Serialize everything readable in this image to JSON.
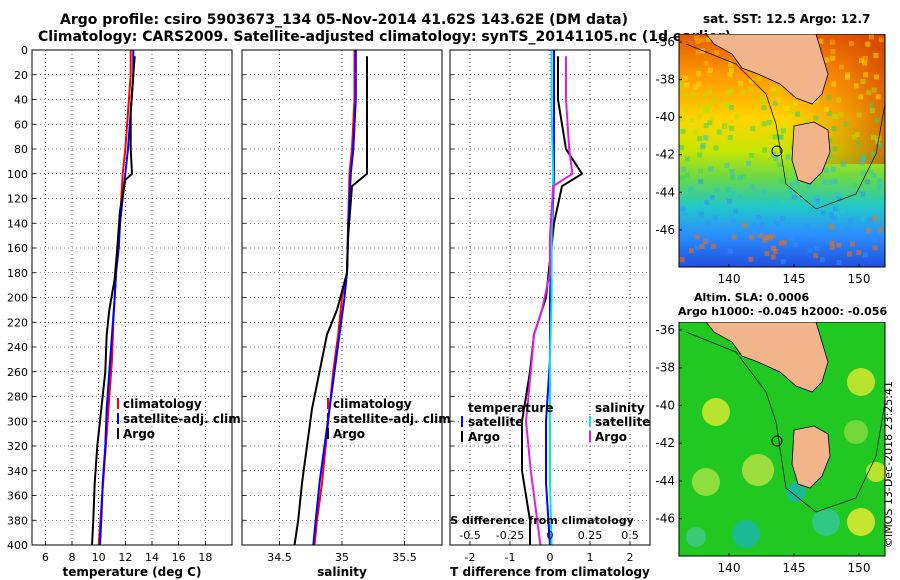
{
  "title": {
    "line1": "Argo profile: csiro 5903673_134 05-Nov-2014 41.62S 143.62E (DM data)",
    "line2": "Climatology: CARS2009. Satellite-adjusted climatology: synTS_20141105.nc (1d earlier)"
  },
  "chart_data": [
    {
      "type": "line",
      "name": "temperature-profile",
      "xlabel": "temperature (deg C)",
      "ylabel": "",
      "xlim": [
        5,
        20
      ],
      "ylim": [
        400,
        0
      ],
      "xticks": [
        6,
        8,
        10,
        12,
        14,
        16,
        18
      ],
      "yticks": [
        0,
        20,
        40,
        60,
        80,
        100,
        120,
        140,
        160,
        180,
        200,
        220,
        240,
        260,
        280,
        300,
        320,
        340,
        360,
        380,
        400
      ],
      "grid": true,
      "legend": [
        "climatology",
        "satellite-adj. clim.",
        "Argo"
      ],
      "series": [
        {
          "name": "climatology",
          "color": "#ff0000",
          "points": [
            [
              12.4,
              0
            ],
            [
              12.4,
              20
            ],
            [
              12.2,
              50
            ],
            [
              12.0,
              80
            ],
            [
              11.8,
              100
            ],
            [
              11.7,
              120
            ],
            [
              11.6,
              140
            ],
            [
              11.5,
              160
            ],
            [
              11.3,
              180
            ],
            [
              11.2,
              200
            ],
            [
              11.1,
              220
            ],
            [
              11.0,
              250
            ],
            [
              10.8,
              280
            ],
            [
              10.6,
              310
            ],
            [
              10.4,
              340
            ],
            [
              10.2,
              370
            ],
            [
              10.0,
              400
            ]
          ]
        },
        {
          "name": "satellite-adj. clim.",
          "color": "#0000ff",
          "points": [
            [
              12.6,
              0
            ],
            [
              12.6,
              20
            ],
            [
              12.4,
              50
            ],
            [
              12.2,
              80
            ],
            [
              12.0,
              100
            ],
            [
              11.8,
              120
            ],
            [
              11.6,
              140
            ],
            [
              11.5,
              160
            ],
            [
              11.3,
              180
            ],
            [
              11.2,
              200
            ],
            [
              11.0,
              230
            ],
            [
              10.8,
              260
            ],
            [
              10.6,
              290
            ],
            [
              10.5,
              320
            ],
            [
              10.3,
              350
            ],
            [
              10.2,
              380
            ],
            [
              10.1,
              400
            ]
          ]
        },
        {
          "name": "Argo",
          "color": "#000000",
          "points": [
            [
              12.7,
              5
            ],
            [
              12.6,
              20
            ],
            [
              12.4,
              50
            ],
            [
              12.4,
              80
            ],
            [
              12.5,
              100
            ],
            [
              12.0,
              105
            ],
            [
              11.6,
              130
            ],
            [
              11.4,
              160
            ],
            [
              11.2,
              185
            ],
            [
              10.8,
              210
            ],
            [
              10.6,
              230
            ],
            [
              10.5,
              260
            ],
            [
              10.2,
              290
            ],
            [
              9.9,
              320
            ],
            [
              9.7,
              350
            ],
            [
              9.6,
              380
            ],
            [
              9.5,
              400
            ]
          ]
        }
      ]
    },
    {
      "type": "line",
      "name": "salinity-profile",
      "xlabel": "salinity",
      "ylabel": "",
      "xlim": [
        34.2,
        35.8
      ],
      "ylim": [
        400,
        0
      ],
      "xticks": [
        34.5,
        35,
        35.5
      ],
      "grid": true,
      "legend": [
        "climatology",
        "satellite-adj. clim.",
        "Argo"
      ],
      "series": [
        {
          "name": "climatology",
          "color": "#ff0000",
          "points": [
            [
              35.1,
              0
            ],
            [
              35.1,
              40
            ],
            [
              35.08,
              80
            ],
            [
              35.06,
              100
            ],
            [
              35.05,
              140
            ],
            [
              35.04,
              180
            ],
            [
              35.0,
              200
            ],
            [
              34.97,
              230
            ],
            [
              34.93,
              260
            ],
            [
              34.9,
              290
            ],
            [
              34.87,
              320
            ],
            [
              34.84,
              350
            ],
            [
              34.8,
              380
            ],
            [
              34.78,
              400
            ]
          ]
        },
        {
          "name": "satellite-adj. clim.",
          "color": "#0000ff",
          "points": [
            [
              35.11,
              0
            ],
            [
              35.11,
              40
            ],
            [
              35.09,
              80
            ],
            [
              35.07,
              100
            ],
            [
              35.05,
              140
            ],
            [
              35.04,
              180
            ],
            [
              35.02,
              200
            ],
            [
              34.98,
              230
            ],
            [
              34.94,
              260
            ],
            [
              34.9,
              290
            ],
            [
              34.86,
              320
            ],
            [
              34.82,
              350
            ],
            [
              34.79,
              380
            ],
            [
              34.77,
              400
            ]
          ]
        },
        {
          "name": "Argo",
          "color": "#000000",
          "points": [
            [
              35.2,
              5
            ],
            [
              35.2,
              40
            ],
            [
              35.2,
              80
            ],
            [
              35.2,
              100
            ],
            [
              35.08,
              110
            ],
            [
              35.05,
              150
            ],
            [
              35.04,
              180
            ],
            [
              34.96,
              210
            ],
            [
              34.88,
              230
            ],
            [
              34.82,
              260
            ],
            [
              34.76,
              290
            ],
            [
              34.72,
              320
            ],
            [
              34.68,
              350
            ],
            [
              34.65,
              380
            ],
            [
              34.62,
              400
            ]
          ]
        }
      ]
    },
    {
      "type": "line",
      "name": "difference-profile",
      "xlabel": "T difference from climatology",
      "x2label": "S difference from climatology",
      "xlim": [
        -2.5,
        2.5
      ],
      "x2lim": [
        -0.625,
        0.625
      ],
      "ylim": [
        400,
        0
      ],
      "xticks": [
        -2,
        -1,
        0,
        1,
        2
      ],
      "x2ticks": [
        -0.5,
        -0.25,
        0,
        0.25,
        0.5
      ],
      "grid": true,
      "legend_temperature": [
        "satellite",
        "Argo"
      ],
      "legend_salinity": [
        "satellite",
        "Argo"
      ],
      "series": [
        {
          "name": "temperature satellite",
          "axis": "T",
          "color": "#0000ff",
          "points": [
            [
              0.1,
              0
            ],
            [
              0.1,
              50
            ],
            [
              0.1,
              100
            ],
            [
              0.05,
              150
            ],
            [
              0.0,
              200
            ],
            [
              0.0,
              250
            ],
            [
              -0.1,
              300
            ],
            [
              -0.1,
              350
            ],
            [
              0.0,
              400
            ]
          ]
        },
        {
          "name": "temperature Argo",
          "axis": "T",
          "color": "#000000",
          "points": [
            [
              0.2,
              5
            ],
            [
              0.2,
              40
            ],
            [
              0.4,
              80
            ],
            [
              0.8,
              100
            ],
            [
              0.3,
              110
            ],
            [
              0.1,
              140
            ],
            [
              0.0,
              170
            ],
            [
              -0.1,
              200
            ],
            [
              -0.4,
              230
            ],
            [
              -0.5,
              260
            ],
            [
              -0.7,
              300
            ],
            [
              -0.7,
              340
            ],
            [
              -0.5,
              380
            ],
            [
              -0.5,
              400
            ]
          ]
        },
        {
          "name": "salinity satellite",
          "axis": "S",
          "color": "#00e5ee",
          "points": [
            [
              0.01,
              0
            ],
            [
              0.01,
              50
            ],
            [
              0.02,
              100
            ],
            [
              0.01,
              150
            ],
            [
              0.01,
              200
            ],
            [
              0.0,
              250
            ],
            [
              0.0,
              300
            ],
            [
              0.0,
              350
            ],
            [
              0.01,
              400
            ]
          ]
        },
        {
          "name": "salinity Argo",
          "axis": "S",
          "color": "#e020e0",
          "points": [
            [
              0.1,
              5
            ],
            [
              0.1,
              40
            ],
            [
              0.12,
              80
            ],
            [
              0.14,
              100
            ],
            [
              0.02,
              110
            ],
            [
              0.0,
              150
            ],
            [
              0.0,
              180
            ],
            [
              -0.05,
              210
            ],
            [
              -0.1,
              230
            ],
            [
              -0.12,
              260
            ],
            [
              -0.15,
              300
            ],
            [
              -0.12,
              340
            ],
            [
              -0.08,
              380
            ],
            [
              -0.06,
              400
            ]
          ]
        }
      ]
    }
  ],
  "maps": {
    "sst": {
      "title": "sat. SST: 12.5 Argo: 12.7",
      "xticks": [
        "140",
        "145",
        "150"
      ],
      "yticks": [
        "-36",
        "-38",
        "-40",
        "-42",
        "-44",
        "-46"
      ]
    },
    "sla": {
      "title_line1": "Altim. SLA: 0.0006",
      "title_line2": "Argo h1000: -0.045 h2000: -0.056",
      "xticks": [
        "140",
        "145",
        "150"
      ],
      "yticks": [
        "-36",
        "-38",
        "-40",
        "-42",
        "-44",
        "-46"
      ]
    }
  },
  "credit": "©IMOS 13-Dec-2018 23:25:41",
  "colors": {
    "climatology": "#ff0000",
    "satellite": "#0000ff",
    "argo": "#000000",
    "sal_satellite": "#00e5ee",
    "sal_argo": "#e020e0",
    "land": "#f2b48a",
    "sla_sea": "#22c822"
  }
}
